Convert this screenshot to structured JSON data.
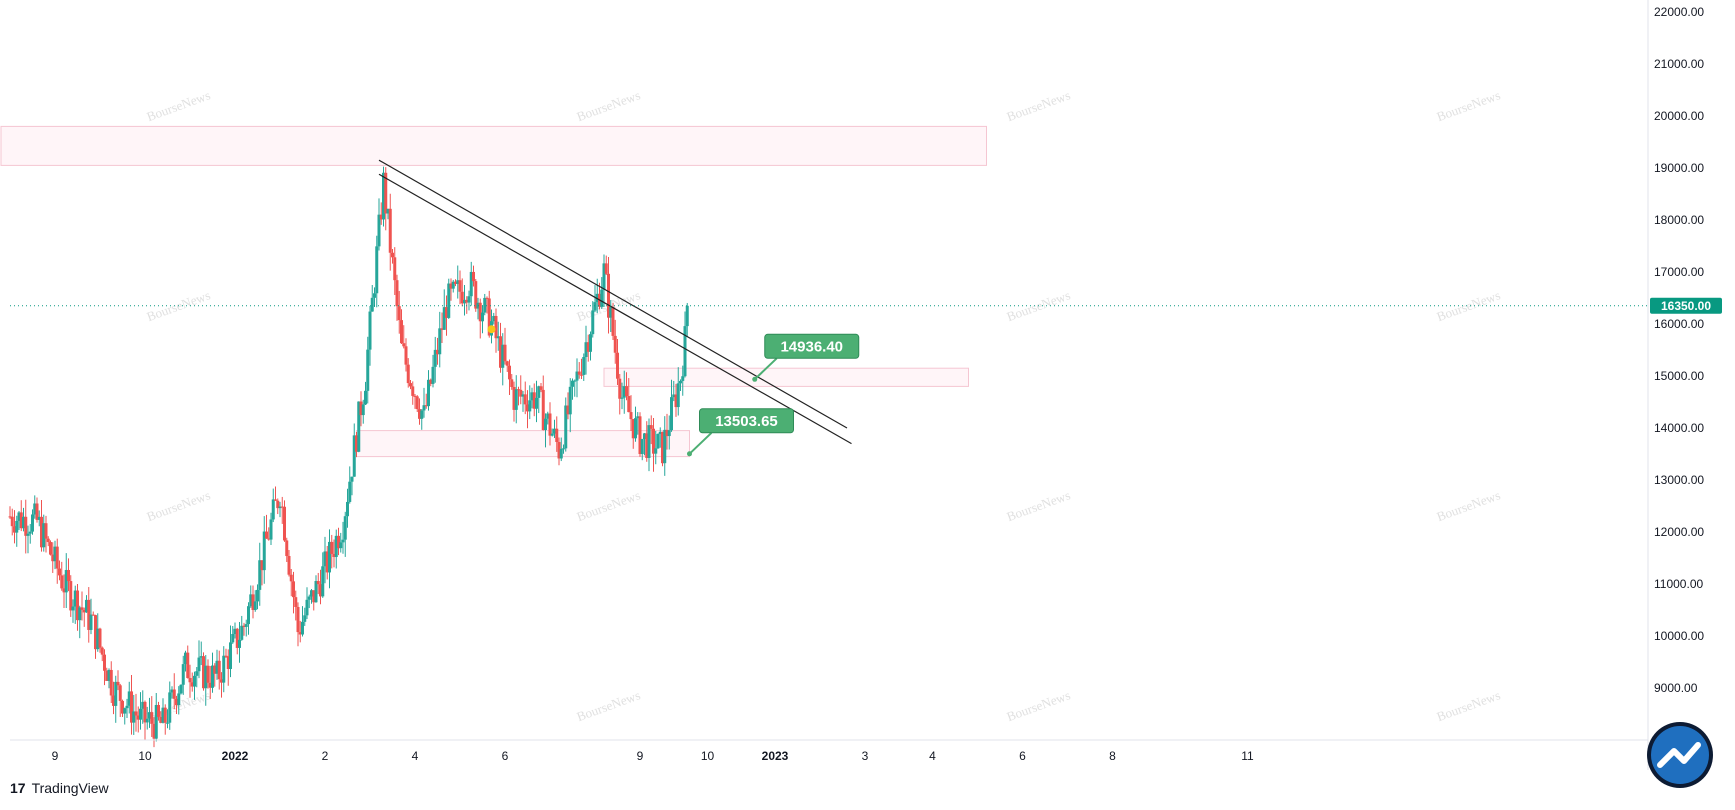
{
  "app": {
    "brand": "TradingView",
    "logo_glyph": "17"
  },
  "watermark_text": "BourseNews",
  "colors": {
    "up": "#26a69a",
    "down": "#ef5350",
    "zone_fill": "#fff5f8",
    "zone_stroke": "#f5c6d2",
    "callout": "#4caf73",
    "last_price": "#089981",
    "trendline": "#222222",
    "marker": "#f5c518"
  },
  "chart_data": {
    "type": "candlestick",
    "title": "",
    "y_axis": {
      "min": 8000,
      "max": 22000,
      "ticks": [
        9000,
        10000,
        11000,
        12000,
        13000,
        14000,
        15000,
        16000,
        17000,
        18000,
        19000,
        20000,
        21000,
        22000
      ],
      "tick_labels": [
        "9000.00",
        "10000.00",
        "11000.00",
        "12000.00",
        "13000.00",
        "14000.00",
        "15000.00",
        "16000.00",
        "17000.00",
        "18000.00",
        "19000.00",
        "20000.00",
        "21000.00",
        "22000.00"
      ]
    },
    "x_axis": {
      "range": [
        0,
        36.4
      ],
      "tick_labels": [
        {
          "label": "9",
          "t": 1,
          "bold": false
        },
        {
          "label": "10",
          "t": 3,
          "bold": false
        },
        {
          "label": "2022",
          "t": 5,
          "bold": true
        },
        {
          "label": "2",
          "t": 7,
          "bold": false
        },
        {
          "label": "4",
          "t": 9,
          "bold": false
        },
        {
          "label": "6",
          "t": 11,
          "bold": false
        },
        {
          "label": "9",
          "t": 14,
          "bold": false
        },
        {
          "label": "10",
          "t": 15.5,
          "bold": false
        },
        {
          "label": "2023",
          "t": 17,
          "bold": true
        },
        {
          "label": "3",
          "t": 19,
          "bold": false
        },
        {
          "label": "4",
          "t": 20.5,
          "bold": false
        },
        {
          "label": "6",
          "t": 22.5,
          "bold": false
        },
        {
          "label": "8",
          "t": 24.5,
          "bold": false
        },
        {
          "label": "11",
          "t": 27.5,
          "bold": false
        }
      ]
    },
    "last_price": {
      "value": 16350,
      "label": "16350.00"
    },
    "callouts": [
      {
        "label": "14936.40",
        "value": 14936.4,
        "t": 16.55
      },
      {
        "label": "13503.65",
        "value": 13503.65,
        "t": 15.1
      }
    ],
    "zones": [
      {
        "t0": -0.2,
        "t1": 21.7,
        "y0": 19050,
        "y1": 19800
      },
      {
        "t0": 13.2,
        "t1": 21.3,
        "y0": 14800,
        "y1": 15150
      },
      {
        "t0": 7.7,
        "t1": 15.1,
        "y0": 13450,
        "y1": 13950
      }
    ],
    "trendlines": [
      {
        "t0": 8.2,
        "y0": 19150,
        "t1": 18.6,
        "y1": 14000
      },
      {
        "t0": 8.2,
        "y0": 18880,
        "t1": 18.7,
        "y1": 13700
      }
    ],
    "marker": {
      "t": 10.7,
      "value": 15900
    },
    "path": [
      [
        0,
        12300
      ],
      [
        0.6,
        12200
      ],
      [
        1.2,
        11000
      ],
      [
        1.8,
        10300
      ],
      [
        2.3,
        9000
      ],
      [
        2.9,
        8400
      ],
      [
        3.4,
        8300
      ],
      [
        3.9,
        9400
      ],
      [
        4.6,
        9200
      ],
      [
        5.2,
        10200
      ],
      [
        6.0,
        12800
      ],
      [
        6.4,
        10100
      ],
      [
        7.0,
        11300
      ],
      [
        7.4,
        12200
      ],
      [
        7.9,
        15000
      ],
      [
        8.3,
        18700
      ],
      [
        8.7,
        15500
      ],
      [
        9.2,
        14200
      ],
      [
        9.7,
        16400
      ],
      [
        10.2,
        16800
      ],
      [
        10.7,
        16000
      ],
      [
        11.2,
        14600
      ],
      [
        11.7,
        14600
      ],
      [
        12.2,
        13600
      ],
      [
        12.7,
        15300
      ],
      [
        13.2,
        17000
      ],
      [
        13.6,
        14600
      ],
      [
        14.0,
        13800
      ],
      [
        14.5,
        13600
      ],
      [
        14.9,
        15000
      ],
      [
        15.1,
        16350
      ]
    ]
  }
}
